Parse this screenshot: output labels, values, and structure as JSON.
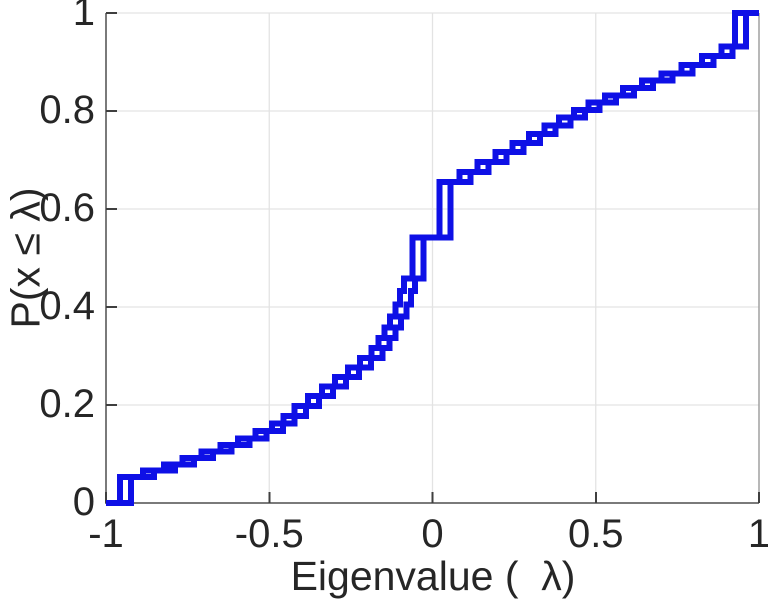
{
  "figure": {
    "background": "#ffffff",
    "title": ""
  },
  "style": {
    "curve_color": "#0e10e6",
    "curve_width": 6,
    "axis_color": "#7a7a7a",
    "box_light_color": "#9a9a9a",
    "grid_color": "#e3e3e3",
    "tick_color": "#3f3f3f",
    "label_color": "#262626"
  },
  "chart_data": {
    "type": "line",
    "subtype": "ecdf-stairs",
    "title": "",
    "xlabel": "Eigenvalue (  λ)",
    "ylabel": "P(x ≤ λ)",
    "xlim": [
      -1,
      1
    ],
    "ylim": [
      0,
      1
    ],
    "grid": true,
    "legend": null,
    "x_ticks": [
      {
        "value": -1,
        "label": "-1"
      },
      {
        "value": -0.5,
        "label": "-0.5"
      },
      {
        "value": 0,
        "label": "0"
      },
      {
        "value": 0.5,
        "label": "0.5"
      },
      {
        "value": 1,
        "label": "1"
      }
    ],
    "y_ticks": [
      {
        "value": 0,
        "label": "0"
      },
      {
        "value": 0.2,
        "label": "0.2"
      },
      {
        "value": 0.4,
        "label": "0.4"
      },
      {
        "value": 0.6,
        "label": "0.6"
      },
      {
        "value": 0.8,
        "label": "0.8"
      },
      {
        "value": 1,
        "label": "1"
      }
    ],
    "series": [
      {
        "name": "ecdf-curve-1",
        "color": "#0e10e6",
        "start": [
          -1,
          0
        ],
        "end_x": 1,
        "steps": [
          [
            -0.957,
            0.053
          ],
          [
            -0.887,
            0.066
          ],
          [
            -0.822,
            0.079
          ],
          [
            -0.765,
            0.092
          ],
          [
            -0.707,
            0.105
          ],
          [
            -0.65,
            0.118
          ],
          [
            -0.595,
            0.132
          ],
          [
            -0.542,
            0.147
          ],
          [
            -0.492,
            0.162
          ],
          [
            -0.457,
            0.178
          ],
          [
            -0.422,
            0.198
          ],
          [
            -0.382,
            0.218
          ],
          [
            -0.339,
            0.238
          ],
          [
            -0.299,
            0.257
          ],
          [
            -0.259,
            0.277
          ],
          [
            -0.222,
            0.296
          ],
          [
            -0.187,
            0.316
          ],
          [
            -0.165,
            0.337
          ],
          [
            -0.147,
            0.358
          ],
          [
            -0.13,
            0.381
          ],
          [
            -0.114,
            0.405
          ],
          [
            -0.1,
            0.433
          ],
          [
            -0.087,
            0.458
          ],
          [
            -0.062,
            0.542
          ],
          [
            0.021,
            0.655
          ],
          [
            0.083,
            0.676
          ],
          [
            0.138,
            0.696
          ],
          [
            0.193,
            0.716
          ],
          [
            0.245,
            0.735
          ],
          [
            0.295,
            0.753
          ],
          [
            0.343,
            0.77
          ],
          [
            0.388,
            0.787
          ],
          [
            0.433,
            0.802
          ],
          [
            0.478,
            0.817
          ],
          [
            0.528,
            0.832
          ],
          [
            0.583,
            0.847
          ],
          [
            0.641,
            0.862
          ],
          [
            0.701,
            0.877
          ],
          [
            0.763,
            0.894
          ],
          [
            0.826,
            0.912
          ],
          [
            0.885,
            0.932
          ],
          [
            0.926,
            1.0
          ]
        ]
      },
      {
        "name": "ecdf-curve-2",
        "color": "#0e10e6",
        "start": [
          -1,
          0
        ],
        "end_x": 1,
        "steps": [
          [
            -0.923,
            0.053
          ],
          [
            -0.853,
            0.066
          ],
          [
            -0.788,
            0.079
          ],
          [
            -0.731,
            0.092
          ],
          [
            -0.673,
            0.105
          ],
          [
            -0.616,
            0.118
          ],
          [
            -0.561,
            0.132
          ],
          [
            -0.508,
            0.147
          ],
          [
            -0.458,
            0.162
          ],
          [
            -0.423,
            0.178
          ],
          [
            -0.388,
            0.198
          ],
          [
            -0.348,
            0.218
          ],
          [
            -0.305,
            0.238
          ],
          [
            -0.265,
            0.257
          ],
          [
            -0.225,
            0.277
          ],
          [
            -0.188,
            0.296
          ],
          [
            -0.153,
            0.316
          ],
          [
            -0.131,
            0.337
          ],
          [
            -0.113,
            0.358
          ],
          [
            -0.096,
            0.381
          ],
          [
            -0.08,
            0.405
          ],
          [
            -0.066,
            0.433
          ],
          [
            -0.053,
            0.458
          ],
          [
            -0.028,
            0.542
          ],
          [
            0.055,
            0.655
          ],
          [
            0.117,
            0.676
          ],
          [
            0.172,
            0.696
          ],
          [
            0.227,
            0.716
          ],
          [
            0.279,
            0.735
          ],
          [
            0.329,
            0.753
          ],
          [
            0.377,
            0.77
          ],
          [
            0.422,
            0.787
          ],
          [
            0.467,
            0.802
          ],
          [
            0.512,
            0.817
          ],
          [
            0.562,
            0.832
          ],
          [
            0.617,
            0.847
          ],
          [
            0.675,
            0.862
          ],
          [
            0.735,
            0.877
          ],
          [
            0.797,
            0.894
          ],
          [
            0.86,
            0.912
          ],
          [
            0.919,
            0.932
          ],
          [
            0.96,
            1.0
          ]
        ]
      }
    ]
  }
}
